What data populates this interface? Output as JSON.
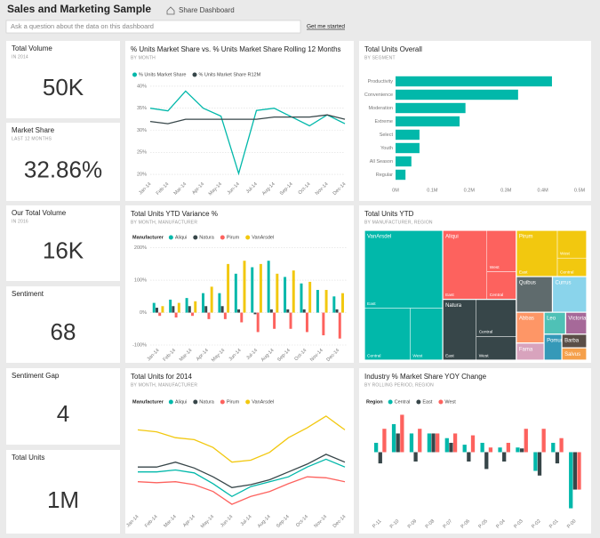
{
  "header": {
    "title": "Sales and Marketing Sample",
    "share": "Share Dashboard",
    "search_placeholder": "Ask a question about the data on this dashboard",
    "get_started": "Get me started"
  },
  "cards": [
    {
      "title": "Total Volume",
      "subtitle": "IN 2014",
      "value": "50K"
    },
    {
      "title": "Market Share",
      "subtitle": "LAST 12 MONTHS",
      "value": "32.86%"
    },
    {
      "title": "Our Total Volume",
      "subtitle": "IN 2016",
      "value": "16K"
    },
    {
      "title": "Sentiment",
      "value": "68"
    },
    {
      "title": "Sentiment Gap",
      "value": "4"
    },
    {
      "title": "Total Units",
      "value": "1M"
    }
  ],
  "chart_data": [
    {
      "type": "line",
      "title": "% Units Market Share vs. % Units Market Share Rolling 12 Months",
      "subtitle": "BY MONTH",
      "categories": [
        "Jan-14",
        "Feb-14",
        "Mar-14",
        "Apr-14",
        "May-14",
        "Jun-14",
        "Jul-14",
        "Aug-14",
        "Sep-14",
        "Oct-14",
        "Nov-14",
        "Dec-14"
      ],
      "series": [
        {
          "name": "% Units Market Share",
          "color": "#01b8aa",
          "values": [
            35,
            34.4,
            38.9,
            35,
            33.2,
            20.2,
            34.5,
            35,
            33,
            31,
            33.5,
            31.5
          ]
        },
        {
          "name": "% Units Market Share R12M",
          "color": "#374649",
          "values": [
            32,
            31.5,
            32.5,
            32.5,
            32.5,
            32.5,
            32.5,
            33,
            33,
            33,
            33.5,
            32.5
          ]
        }
      ],
      "ylim": [
        19,
        41
      ],
      "yticks": [
        {
          "value": 20,
          "label": "20%"
        },
        {
          "value": 25,
          "label": "25%"
        },
        {
          "value": 30,
          "label": "30%"
        },
        {
          "value": 35,
          "label": "35%"
        },
        {
          "value": 40,
          "label": "40%"
        }
      ],
      "grid": true
    },
    {
      "type": "hbar",
      "title": "Total Units Overall",
      "subtitle": "BY SEGMENT",
      "categories": [
        "Productivity",
        "Convenience",
        "Moderation",
        "Extreme",
        "Select",
        "Youth",
        "All Season",
        "Regular"
      ],
      "values": [
        425000,
        333000,
        190000,
        174000,
        65000,
        65000,
        43000,
        27000
      ],
      "color": "#01b8aa",
      "xlim": [
        0,
        500000
      ],
      "xticks": [
        {
          "value": 0,
          "label": "0M"
        },
        {
          "value": 100000,
          "label": "0.1M"
        },
        {
          "value": 200000,
          "label": "0.2M"
        },
        {
          "value": 300000,
          "label": "0.3M"
        },
        {
          "value": 400000,
          "label": "0.4M"
        },
        {
          "value": 500000,
          "label": "0.5M"
        }
      ]
    },
    {
      "type": "column",
      "title": "Total Units YTD Variance %",
      "subtitle": "BY MONTH, MANUFACTURER",
      "legend_title": "Manufacturer",
      "categories": [
        "Jan-14",
        "Feb-14",
        "Mar-14",
        "Apr-14",
        "May-14",
        "Jun-14",
        "Jul-14",
        "Aug-14",
        "Sep-14",
        "Oct-14",
        "Nov-14",
        "Dec-14"
      ],
      "series": [
        {
          "name": "Aliqui",
          "color": "#01b8aa",
          "values": [
            30,
            40,
            45,
            60,
            60,
            120,
            140,
            160,
            110,
            90,
            70,
            50
          ]
        },
        {
          "name": "Natura",
          "color": "#374649",
          "values": [
            15,
            20,
            20,
            20,
            20,
            10,
            -5,
            10,
            10,
            10,
            0,
            10
          ]
        },
        {
          "name": "Pirum",
          "color": "#fd625e",
          "values": [
            -10,
            -15,
            -10,
            -20,
            -20,
            -30,
            -60,
            -50,
            -50,
            -60,
            -70,
            -80
          ]
        },
        {
          "name": "VanArsdel",
          "color": "#f2c80f",
          "values": [
            20,
            30,
            35,
            80,
            150,
            160,
            150,
            120,
            130,
            95,
            70,
            60
          ]
        }
      ],
      "ylim": [
        -100,
        210
      ],
      "yticks": [
        {
          "value": -100,
          "label": "-100%"
        },
        {
          "value": 0,
          "label": "0%"
        },
        {
          "value": 100,
          "label": "100%"
        },
        {
          "value": 200,
          "label": "200%"
        }
      ],
      "grid": true
    },
    {
      "type": "treemap",
      "title": "Total Units YTD",
      "subtitle": "BY MANUFACTURER, REGION",
      "nodes": [
        {
          "name": "VanArsdel",
          "color": "#01b8aa",
          "children": [
            {
              "name": "East",
              "value": 9000
            },
            {
              "name": "Central",
              "value": 3500
            },
            {
              "name": "West",
              "value": 2500
            }
          ]
        },
        {
          "name": "Aliqui",
          "color": "#fd625e",
          "children": [
            {
              "name": "East",
              "value": 4500
            },
            {
              "name": "West",
              "value": 1800
            },
            {
              "name": "Central",
              "value": 1200
            }
          ]
        },
        {
          "name": "Natura",
          "color": "#374649",
          "children": [
            {
              "name": "East",
              "value": 3000
            },
            {
              "name": "Central",
              "value": 2200
            },
            {
              "name": "West",
              "value": 1400
            }
          ]
        },
        {
          "name": "Pirum",
          "color": "#f2c80f",
          "children": [
            {
              "name": "East",
              "value": 2800
            },
            {
              "name": "West",
              "value": 1200
            },
            {
              "name": "Central",
              "value": 800
            }
          ]
        },
        {
          "name": "Quibus",
          "color": "#5f6b6d",
          "value": 1900
        },
        {
          "name": "Currus",
          "color": "#8ad4eb",
          "value": 1800
        },
        {
          "name": "Abbas",
          "color": "#fe9666",
          "value": 1260
        },
        {
          "name": "Fama",
          "color": "#d8a3bd",
          "value": 700
        },
        {
          "name": "Leo",
          "color": "#4fc1b6",
          "value": 700
        },
        {
          "name": "Victoria",
          "color": "#a66999",
          "value": 680
        },
        {
          "name": "Pomum",
          "color": "#3599b8",
          "value": 680
        },
        {
          "name": "Barba",
          "color": "#5a4e47",
          "value": 500
        },
        {
          "name": "Salvus",
          "color": "#f5a04b",
          "value": 450
        }
      ]
    },
    {
      "type": "line",
      "title": "Total Units for 2014",
      "subtitle": "BY MONTH, MANUFACTURER",
      "legend_title": "Manufacturer",
      "categories": [
        "Jan-14",
        "Feb-14",
        "Mar-14",
        "Apr-14",
        "May-14",
        "Jun-14",
        "Jul-14",
        "Aug-14",
        "Sep-14",
        "Oct-14",
        "Nov-14",
        "Dec-14"
      ],
      "series": [
        {
          "name": "Aliqui",
          "color": "#01b8aa",
          "values": [
            60,
            60,
            62,
            59,
            48,
            35,
            45,
            50,
            55,
            65,
            73,
            65
          ]
        },
        {
          "name": "Natura",
          "color": "#374649",
          "values": [
            65,
            65,
            70,
            64,
            55,
            44,
            47,
            52,
            60,
            68,
            78,
            70
          ]
        },
        {
          "name": "Pirum",
          "color": "#fd625e",
          "values": [
            50,
            49,
            50,
            47,
            40,
            27,
            35,
            40,
            48,
            55,
            54,
            50
          ]
        },
        {
          "name": "VanArsdel",
          "color": "#f2c80f",
          "values": [
            103,
            101,
            95,
            93,
            85,
            70,
            72,
            80,
            95,
            105,
            117,
            103
          ]
        }
      ]
    },
    {
      "type": "column",
      "title": "Industry % Market Share YOY Change",
      "subtitle": "BY ROLLING PERIOD, REGION",
      "legend_title": "Region",
      "categories": [
        "P-11",
        "P-10",
        "P-09",
        "P-08",
        "P-07",
        "P-06",
        "P-05",
        "P-04",
        "P-03",
        "P-02",
        "P-01",
        "P-00"
      ],
      "series": [
        {
          "name": "Central",
          "color": "#01b8aa",
          "values": [
            10,
            30,
            20,
            20,
            15,
            8,
            10,
            5,
            5,
            -20,
            10,
            -60
          ]
        },
        {
          "name": "East",
          "color": "#374649",
          "values": [
            -12,
            20,
            -10,
            20,
            10,
            -10,
            -18,
            -10,
            4,
            -25,
            -12,
            -40
          ]
        },
        {
          "name": "West",
          "color": "#fd625e",
          "values": [
            25,
            40,
            25,
            20,
            20,
            18,
            5,
            10,
            25,
            25,
            15,
            -40
          ]
        }
      ]
    }
  ]
}
